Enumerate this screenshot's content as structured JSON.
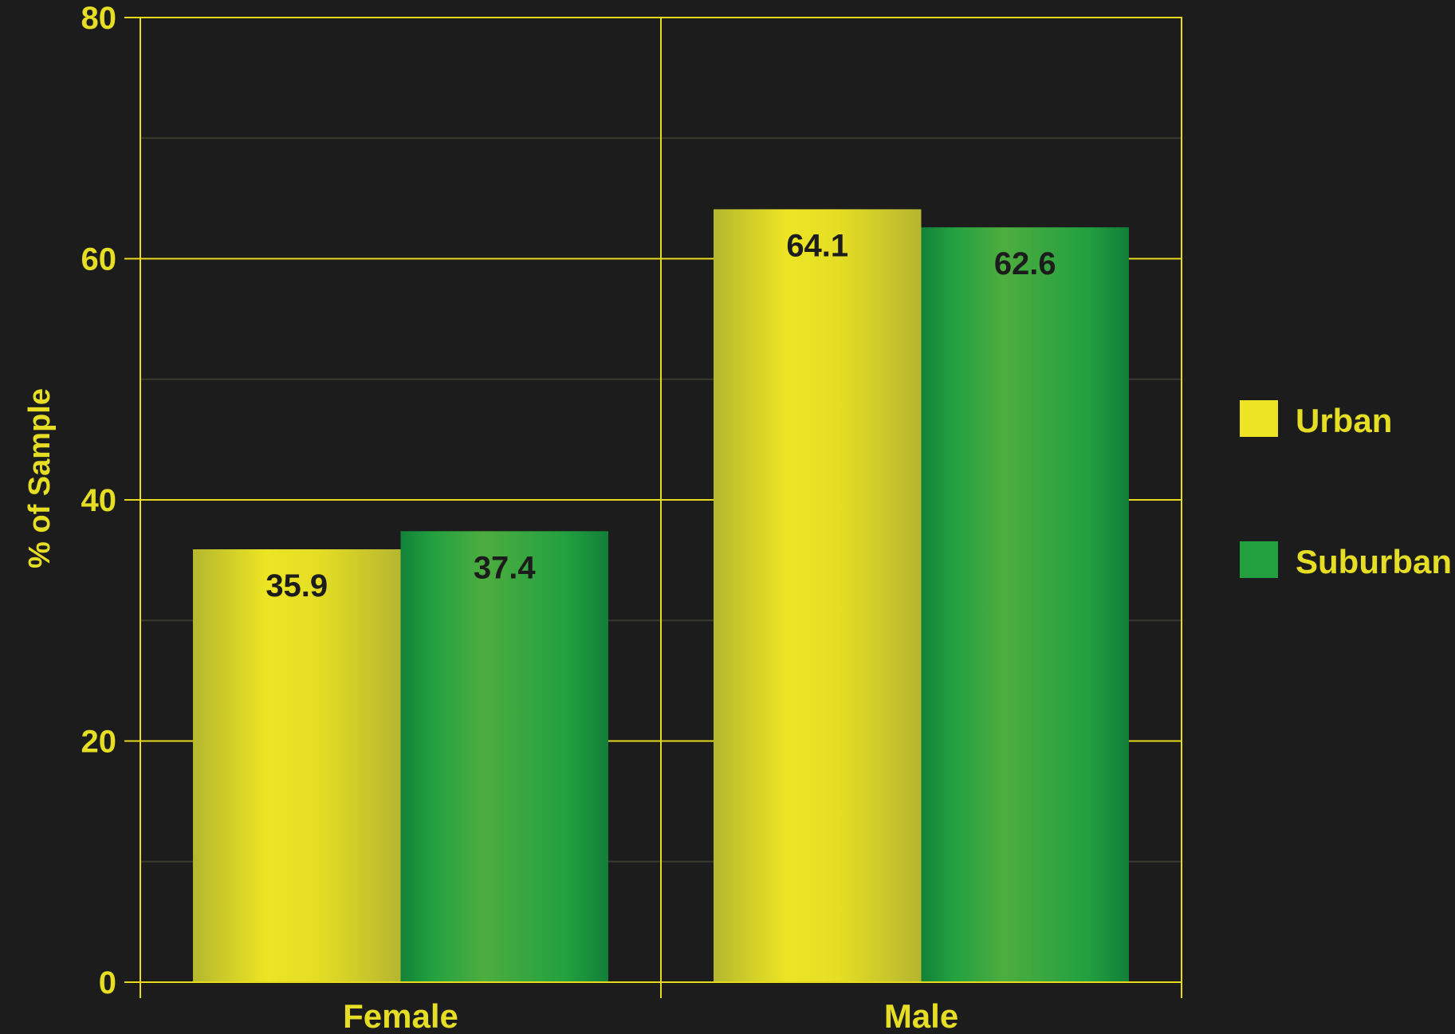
{
  "colors": {
    "background": "#1b1c1b",
    "axis": "#e6d91e",
    "minor_grid": "#3a3a30",
    "text": "#e6dd25",
    "value_label": "#1b1c1b",
    "urban": "#ece424",
    "suburban": "#22a040"
  },
  "chart_data": {
    "type": "bar",
    "categories": [
      "Female",
      "Male"
    ],
    "series": [
      {
        "name": "Urban",
        "values": [
          35.9,
          64.1
        ]
      },
      {
        "name": "Suburban",
        "values": [
          37.4,
          62.6
        ]
      }
    ],
    "value_labels": [
      [
        "35.9",
        "64.1"
      ],
      [
        "37.4",
        "62.6"
      ]
    ],
    "ylabel": "% of Sample",
    "xlabel": "",
    "ylim": [
      0,
      80
    ],
    "yticks": [
      "0",
      "20",
      "40",
      "60",
      "80"
    ],
    "grid": true,
    "legend_position": "right"
  }
}
